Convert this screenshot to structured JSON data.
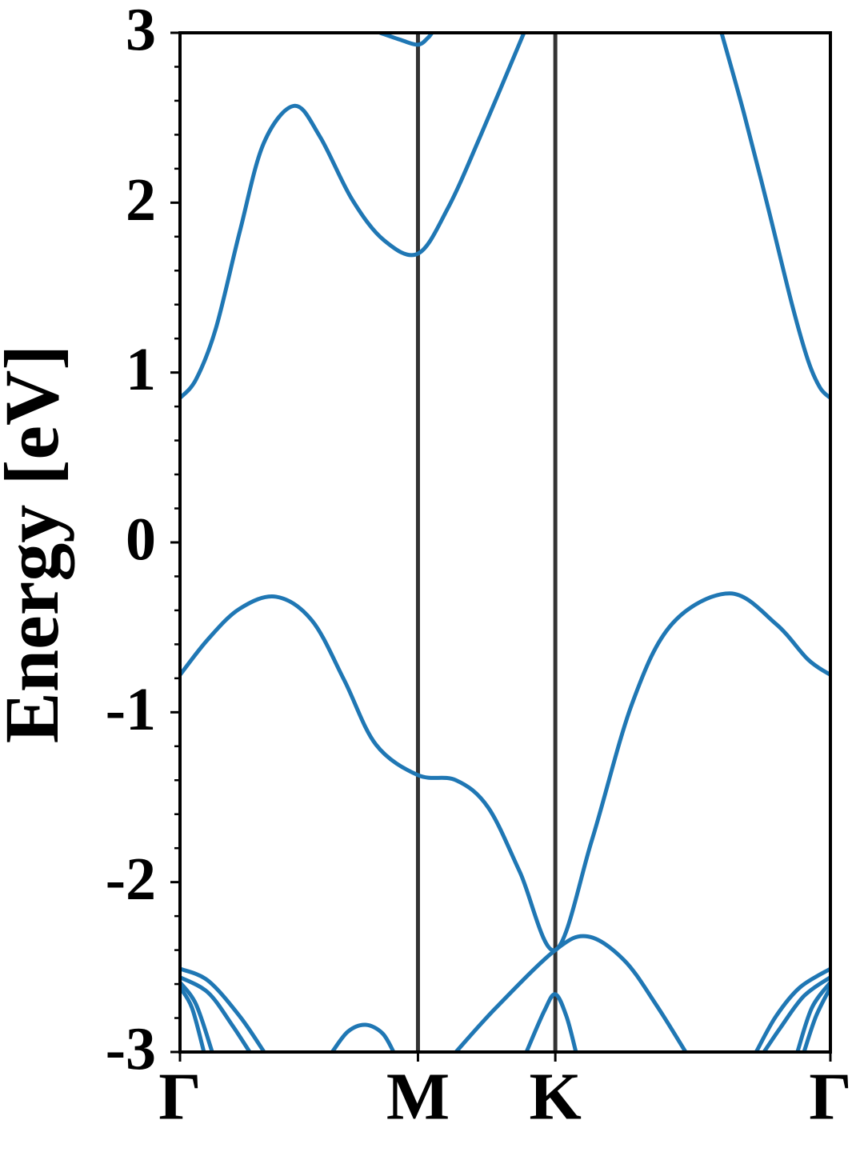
{
  "chart_data": {
    "type": "line",
    "ylabel": "Energy [eV]",
    "xlim": [
      0,
      1.577
    ],
    "ylim": [
      -3,
      3
    ],
    "xticks": [
      {
        "value": 0,
        "label": "Γ"
      },
      {
        "value": 0.577,
        "label": "M"
      },
      {
        "value": 0.91,
        "label": "K"
      },
      {
        "value": 1.577,
        "label": "Γ"
      }
    ],
    "yticks": [
      -3,
      -2,
      -1,
      0,
      1,
      2,
      3
    ],
    "vlines_color": "#333333",
    "series": [
      {
        "color": "#1f77b4",
        "x": [
          0,
          0.039,
          0.087,
          0.145,
          0.203,
          0.277,
          0.339,
          0.417,
          0.494,
          0.577,
          0.65,
          0.728,
          0.834
        ],
        "values": [
          0.85,
          0.96,
          1.26,
          1.83,
          2.35,
          2.57,
          2.39,
          2.02,
          1.78,
          1.7,
          1.97,
          2.39,
          3
        ]
      },
      {
        "color": "#1f77b4",
        "x": [
          1.313,
          1.367,
          1.426,
          1.484,
          1.523,
          1.552,
          1.577
        ],
        "values": [
          3,
          2.53,
          1.97,
          1.4,
          1.07,
          0.91,
          0.85
        ]
      },
      {
        "color": "#1f77b4",
        "x": [
          0.485,
          0.533,
          0.577,
          0.601,
          0.611
        ],
        "values": [
          3,
          2.96,
          2.93,
          2.97,
          3
        ]
      },
      {
        "color": "#1f77b4",
        "x": [
          0,
          0.068,
          0.145,
          0.233,
          0.32,
          0.398,
          0.475,
          0.577,
          0.669,
          0.747,
          0.824,
          0.91,
          0.999,
          1.096,
          1.193,
          1.333,
          1.445,
          1.523,
          1.577
        ],
        "values": [
          -0.78,
          -0.57,
          -0.39,
          -0.32,
          -0.46,
          -0.81,
          -1.19,
          -1.37,
          -1.4,
          -1.56,
          -1.94,
          -2.4,
          -1.75,
          -0.95,
          -0.48,
          -0.3,
          -0.48,
          -0.69,
          -0.78
        ]
      },
      {
        "color": "#1f77b4",
        "x": [
          0.669,
          0.766,
          0.91,
          0.989,
          1.077,
          1.154,
          1.226
        ],
        "values": [
          -3,
          -2.74,
          -2.4,
          -2.32,
          -2.46,
          -2.72,
          -3
        ]
      },
      {
        "color": "#1f77b4",
        "x": [
          0.84,
          0.883,
          0.91,
          0.937,
          0.96
        ],
        "values": [
          -3,
          -2.76,
          -2.66,
          -2.79,
          -3
        ]
      },
      {
        "color": "#1f77b4",
        "x": [
          0.369,
          0.407,
          0.45,
          0.491,
          0.518
        ],
        "values": [
          -3,
          -2.88,
          -2.84,
          -2.89,
          -3
        ]
      },
      {
        "color": "#1f77b4",
        "x": [
          0,
          0.068,
          0.145,
          0.204
        ],
        "values": [
          -2.51,
          -2.58,
          -2.79,
          -3
        ]
      },
      {
        "color": "#1f77b4",
        "x": [
          0,
          0.068,
          0.126,
          0.169
        ],
        "values": [
          -2.56,
          -2.65,
          -2.84,
          -3
        ]
      },
      {
        "color": "#1f77b4",
        "x": [
          0,
          0.039,
          0.078
        ],
        "values": [
          -2.59,
          -2.72,
          -3
        ]
      },
      {
        "color": "#1f77b4",
        "x": [
          0,
          0.029,
          0.058
        ],
        "values": [
          -2.62,
          -2.74,
          -3
        ]
      },
      {
        "color": "#1f77b4",
        "x": [
          1.577,
          1.503,
          1.445,
          1.397
        ],
        "values": [
          -2.51,
          -2.62,
          -2.79,
          -3
        ]
      },
      {
        "color": "#1f77b4",
        "x": [
          1.577,
          1.513,
          1.455,
          1.416
        ],
        "values": [
          -2.56,
          -2.67,
          -2.86,
          -3
        ]
      },
      {
        "color": "#1f77b4",
        "x": [
          1.577,
          1.532,
          1.497
        ],
        "values": [
          -2.59,
          -2.74,
          -3
        ]
      },
      {
        "color": "#1f77b4",
        "x": [
          1.577,
          1.542,
          1.513
        ],
        "values": [
          -2.62,
          -2.79,
          -3
        ]
      }
    ]
  }
}
